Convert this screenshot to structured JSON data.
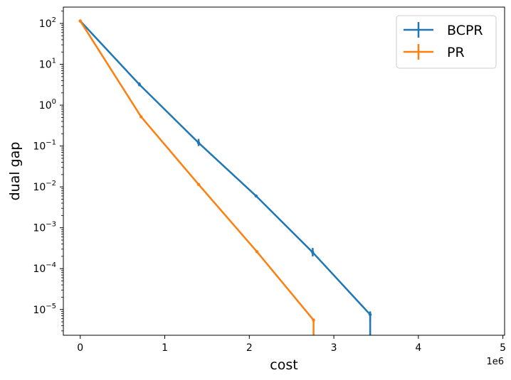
{
  "chart_data": {
    "type": "line",
    "title": "",
    "xlabel": "cost",
    "ylabel": "dual gap",
    "x_offset_label": "1e6",
    "xlim": [
      -0.2,
      5.02
    ],
    "ylim_log10": [
      -5.63,
      2.4
    ],
    "y_scale": "log",
    "x_ticks": [
      {
        "value": 0,
        "label": "0"
      },
      {
        "value": 1,
        "label": "1"
      },
      {
        "value": 2,
        "label": "2"
      },
      {
        "value": 3,
        "label": "3"
      },
      {
        "value": 4,
        "label": "4"
      },
      {
        "value": 5,
        "label": "5"
      }
    ],
    "y_ticks": [
      {
        "exp": 2,
        "base": "10",
        "sup": "2"
      },
      {
        "exp": 1,
        "base": "10",
        "sup": "1"
      },
      {
        "exp": 0,
        "base": "10",
        "sup": "0"
      },
      {
        "exp": -1,
        "base": "10",
        "sup": "−1"
      },
      {
        "exp": -2,
        "base": "10",
        "sup": "−2"
      },
      {
        "exp": -3,
        "base": "10",
        "sup": "−3"
      },
      {
        "exp": -4,
        "base": "10",
        "sup": "−4"
      },
      {
        "exp": -5,
        "base": "10",
        "sup": "−5"
      }
    ],
    "grid": false,
    "legend_position": "top-right",
    "series": [
      {
        "name": "BCPR",
        "color": "#1f77b4",
        "x": [
          0,
          0.7,
          1.4,
          2.08,
          2.75,
          3.43,
          3.43
        ],
        "y": [
          115,
          3.2,
          0.12,
          0.006,
          0.00025,
          7.5e-06,
          1e-07
        ],
        "err_low": [
          115,
          2.9,
          0.1,
          0.0058,
          0.0002,
          5e-06,
          null
        ],
        "err_high": [
          115,
          3.6,
          0.15,
          0.0062,
          0.00032,
          9e-06,
          null
        ]
      },
      {
        "name": "PR",
        "color": "#ff7f0e",
        "x": [
          0,
          0.72,
          1.4,
          2.09,
          2.76,
          2.76
        ],
        "y": [
          115,
          0.52,
          0.0115,
          0.00026,
          5.5e-06,
          1e-07
        ],
        "err_low": [
          115,
          0.5,
          0.011,
          0.00025,
          5e-06,
          null
        ],
        "err_high": [
          115,
          0.55,
          0.012,
          0.00028,
          6e-06,
          null
        ]
      }
    ]
  }
}
